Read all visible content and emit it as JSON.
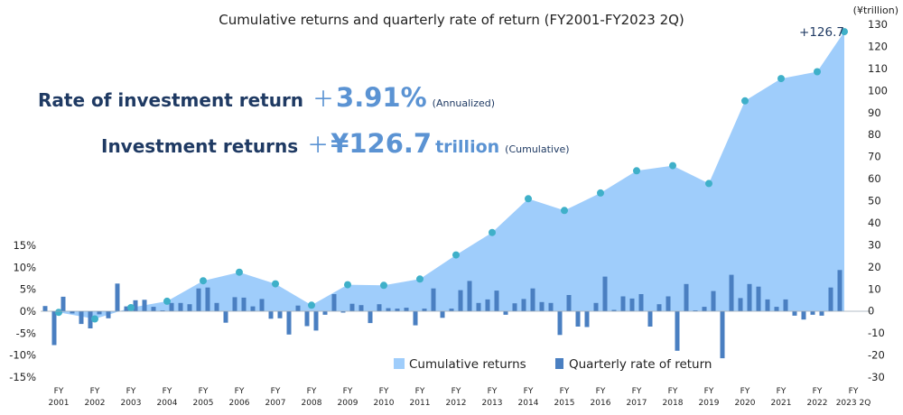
{
  "chart_data": {
    "type": "bar+area",
    "title": "Cumulative returns and quarterly rate of return (FY2001-FY2023 2Q)",
    "headline": {
      "rate_label": "Rate of investment return",
      "rate_plus": "＋",
      "rate_value": "3.91%",
      "rate_note": "(Annualized)",
      "returns_label": "Investment returns",
      "returns_plus": "＋",
      "returns_value": "¥126.7",
      "returns_unit": "trillion",
      "returns_note": "(Cumulative)"
    },
    "y_left": {
      "ylim": [
        -15,
        15
      ],
      "ticks": [
        "15%",
        "10%",
        "5%",
        "0%",
        "-5%",
        "-10%",
        "-15%"
      ]
    },
    "y_right": {
      "unit": "(¥trillion)",
      "ylim": [
        -30,
        130
      ],
      "ticks": [
        "130",
        "120",
        "110",
        "100",
        "90",
        "80",
        "70",
        "60",
        "50",
        "40",
        "30",
        "20",
        "10",
        "0",
        "-10",
        "-20",
        "-30"
      ]
    },
    "x_ticks": [
      {
        "top": "FY",
        "bottom": "2001"
      },
      {
        "top": "FY",
        "bottom": "2002"
      },
      {
        "top": "FY",
        "bottom": "2003"
      },
      {
        "top": "FY",
        "bottom": "2004"
      },
      {
        "top": "FY",
        "bottom": "2005"
      },
      {
        "top": "FY",
        "bottom": "2006"
      },
      {
        "top": "FY",
        "bottom": "2007"
      },
      {
        "top": "FY",
        "bottom": "2008"
      },
      {
        "top": "FY",
        "bottom": "2009"
      },
      {
        "top": "FY",
        "bottom": "2010"
      },
      {
        "top": "FY",
        "bottom": "2011"
      },
      {
        "top": "FY",
        "bottom": "2012"
      },
      {
        "top": "FY",
        "bottom": "2013"
      },
      {
        "top": "FY",
        "bottom": "2014"
      },
      {
        "top": "FY",
        "bottom": "2015"
      },
      {
        "top": "FY",
        "bottom": "2016"
      },
      {
        "top": "FY",
        "bottom": "2017"
      },
      {
        "top": "FY",
        "bottom": "2018"
      },
      {
        "top": "FY",
        "bottom": "2019"
      },
      {
        "top": "FY",
        "bottom": "2020"
      },
      {
        "top": "FY",
        "bottom": "2021"
      },
      {
        "top": "FY",
        "bottom": "2022"
      },
      {
        "top": "FY",
        "bottom": "2023 2Q"
      }
    ],
    "series": [
      {
        "name": "Cumulative returns",
        "type": "area",
        "axis": "right",
        "color": "#9fcdfb",
        "marker_color": "#3fb0c9",
        "x": [
          2001.5,
          2002.5,
          2003.5,
          2004.5,
          2005.5,
          2006.5,
          2007.5,
          2008.5,
          2009.5,
          2010.5,
          2011.5,
          2012.5,
          2013.5,
          2014.5,
          2015.5,
          2016.5,
          2017.5,
          2018.5,
          2019.5,
          2020.5,
          2021.5,
          2022.5,
          2023.25
        ],
        "values": [
          -0.6,
          -3.6,
          1.5,
          4.4,
          13.7,
          17.6,
          12.3,
          2.6,
          11.9,
          11.6,
          14.5,
          25.4,
          35.6,
          50.9,
          45.6,
          53.5,
          63.6,
          65.9,
          57.8,
          95.3,
          105.4,
          108.5,
          126.7
        ]
      },
      {
        "name": "Quarterly rate of return",
        "type": "bar",
        "axis": "left",
        "color": "#4a7fc1",
        "values": [
          1.2,
          -7.7,
          3.3,
          -0.5,
          -2.9,
          -3.9,
          -0.7,
          -1.6,
          6.3,
          1.1,
          2.5,
          2.6,
          1.0,
          0.2,
          1.9,
          1.9,
          1.6,
          5.2,
          5.4,
          1.9,
          -2.6,
          3.2,
          3.1,
          1.1,
          2.8,
          -1.7,
          -1.6,
          -5.3,
          1.3,
          -3.4,
          -4.4,
          -0.8,
          3.9,
          -0.3,
          1.7,
          1.4,
          -2.7,
          1.6,
          0.7,
          0.6,
          0.8,
          -3.2,
          0.6,
          5.2,
          -1.5,
          0.6,
          4.8,
          6.9,
          1.9,
          2.7,
          4.7,
          -0.8,
          1.8,
          2.8,
          5.2,
          2.1,
          1.9,
          -5.4,
          3.7,
          -3.5,
          -3.6,
          1.9,
          7.9,
          0.3,
          3.4,
          2.9,
          3.9,
          -3.5,
          1.6,
          3.4,
          -9.0,
          6.2,
          0.2,
          1.0,
          4.6,
          -10.7,
          8.3,
          3.0,
          6.2,
          5.6,
          2.7,
          1.0,
          2.7,
          -1.0,
          -1.9,
          -0.8,
          -1.0,
          5.4,
          9.4
        ]
      }
    ],
    "annotations": [
      {
        "text": "+126.7",
        "x": 2023.25,
        "y": 126.7
      }
    ],
    "legend": {
      "position": "bottom-right",
      "items": [
        "Cumulative returns",
        "Quarterly rate of return"
      ]
    },
    "grid": false
  }
}
